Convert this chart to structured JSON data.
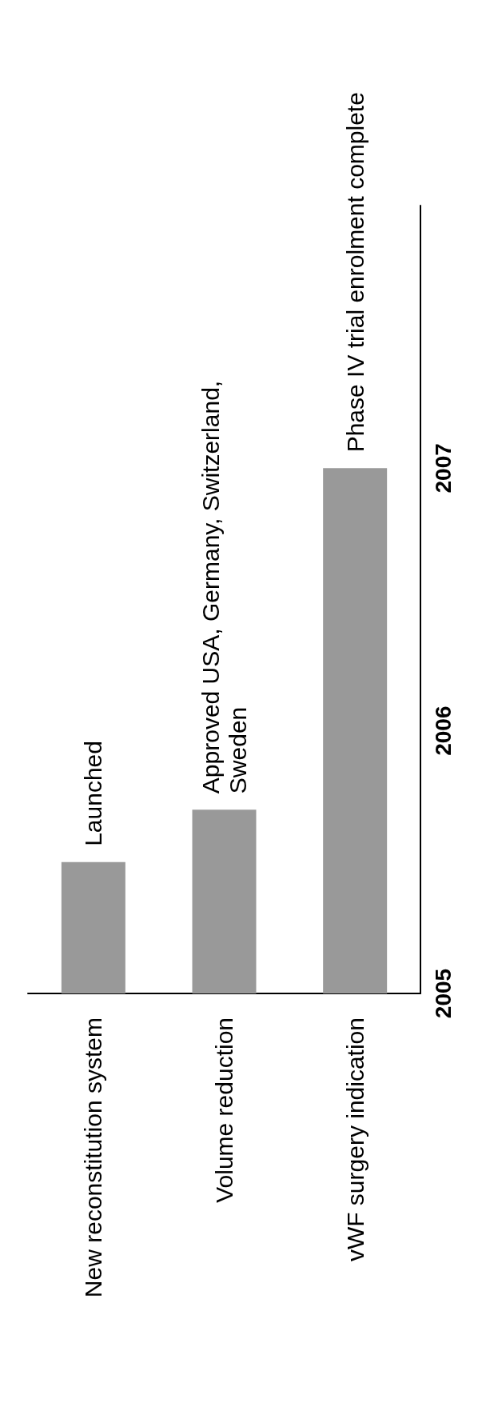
{
  "chart_data": {
    "type": "bar",
    "categories": [
      "New reconstitution system",
      "Volume reduction",
      "vWF surgery indication"
    ],
    "values": [
      2005.5,
      2005.7,
      2007.0
    ],
    "color": "#999999",
    "ylim": [
      2005,
      2008
    ],
    "yticks": [
      2005,
      2006,
      2007
    ],
    "grid": false,
    "annotations": [
      {
        "text": "Launched",
        "x": "New reconstitution system",
        "y": 2005.5
      },
      {
        "text": "Approved USA, Germany, Switzerland, Sweden",
        "x": "Volume reduction",
        "y": 2005.7
      },
      {
        "text": "Phase IV trial enrolment complete",
        "x": "vWF surgery indication",
        "y": 2007.0
      }
    ]
  }
}
